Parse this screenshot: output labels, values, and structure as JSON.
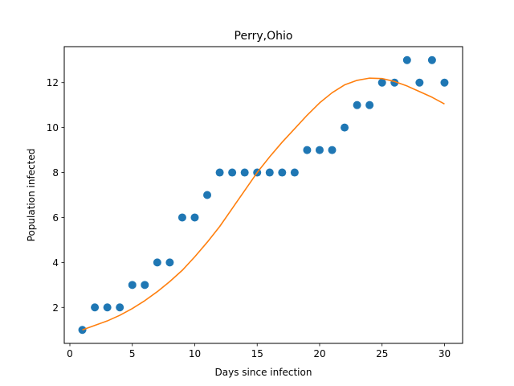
{
  "chart_data": {
    "type": "scatter",
    "title": "Perry,Ohio",
    "xlabel": "Days since infection",
    "ylabel": "Population infected",
    "xlim": [
      -0.45,
      31.45
    ],
    "ylim": [
      0.4,
      13.6
    ],
    "xticks": [
      0,
      5,
      10,
      15,
      20,
      25,
      30
    ],
    "yticks": [
      2,
      4,
      6,
      8,
      10,
      12
    ],
    "grid": false,
    "colors": {
      "points": "#1f77b4",
      "fit": "#ff7f0e"
    },
    "series": [
      {
        "type": "scatter",
        "x": [
          1,
          2,
          3,
          4,
          5,
          6,
          7,
          8,
          9,
          10,
          11,
          12,
          13,
          14,
          15,
          16,
          17,
          18,
          19,
          20,
          21,
          22,
          23,
          24,
          25,
          26,
          27,
          28,
          29,
          30
        ],
        "values": [
          1,
          2,
          2,
          2,
          3,
          3,
          4,
          4,
          6,
          6,
          7,
          8,
          8,
          8,
          8,
          8,
          8,
          8,
          9,
          9,
          9,
          10,
          11,
          11,
          12,
          12,
          13,
          12,
          13,
          12
        ]
      },
      {
        "type": "line",
        "x": [
          1,
          2,
          3,
          4,
          5,
          6,
          7,
          8,
          9,
          10,
          11,
          12,
          13,
          14,
          15,
          16,
          17,
          18,
          19,
          20,
          21,
          22,
          23,
          24,
          25,
          26,
          27,
          28,
          29,
          30
        ],
        "values": [
          1.0,
          1.2,
          1.4,
          1.65,
          1.95,
          2.3,
          2.7,
          3.15,
          3.65,
          4.25,
          4.9,
          5.6,
          6.4,
          7.2,
          8.0,
          8.7,
          9.35,
          9.95,
          10.55,
          11.1,
          11.55,
          11.9,
          12.1,
          12.2,
          12.18,
          12.05,
          11.85,
          11.6,
          11.35,
          11.05
        ]
      }
    ]
  }
}
